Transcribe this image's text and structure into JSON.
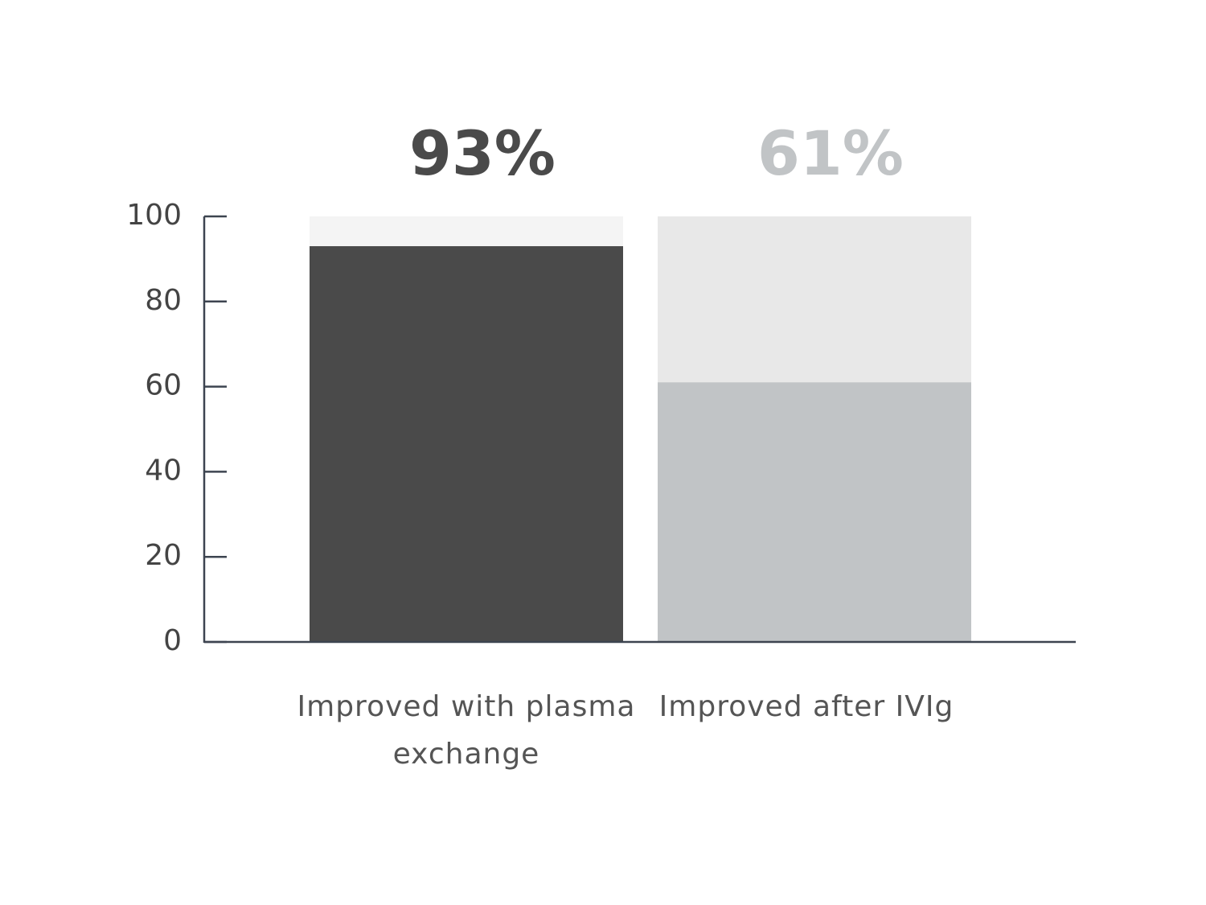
{
  "chart_data": {
    "type": "bar",
    "categories": [
      "Improved with plasma exchange",
      "Improved after IVIg"
    ],
    "values": [
      93,
      61
    ],
    "value_labels": [
      "93%",
      "61%"
    ],
    "colors": [
      "#4a4a4a",
      "#c1c4c6"
    ],
    "track_colors": [
      "#f4f4f4",
      "#e8e8e8"
    ],
    "ylim": [
      0,
      100
    ],
    "yticks": [
      0,
      20,
      40,
      60,
      80,
      100
    ],
    "grid": false
  }
}
